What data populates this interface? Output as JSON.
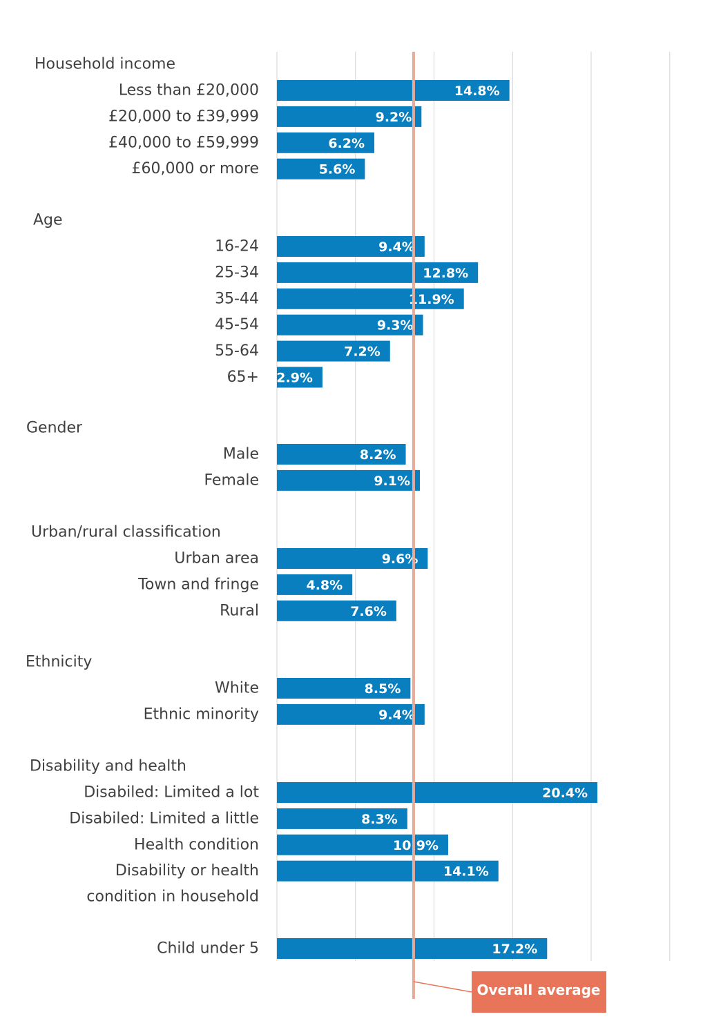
{
  "chart_data": {
    "type": "bar",
    "orientation": "horizontal",
    "xlim": [
      0,
      25
    ],
    "grid": true,
    "colors": {
      "bar": "#0a7fbf",
      "average_line": "#e8aa98",
      "average_box": "#e8755a"
    },
    "overall_average": {
      "label": "Overall average",
      "value": 8.7
    },
    "groups": [
      {
        "title": "Household income",
        "items": [
          {
            "label": [
              "Less than £20,000"
            ],
            "value": 14.8,
            "value_label": "14.8%"
          },
          {
            "label": [
              "£20,000 to £39,999"
            ],
            "value": 9.2,
            "value_label": "9.2%"
          },
          {
            "label": [
              "£40,000 to £59,999"
            ],
            "value": 6.2,
            "value_label": "6.2%"
          },
          {
            "label": [
              "£60,000 or more"
            ],
            "value": 5.6,
            "value_label": "5.6%"
          }
        ]
      },
      {
        "title": "Age",
        "items": [
          {
            "label": [
              "16-24"
            ],
            "value": 9.4,
            "value_label": "9.4%"
          },
          {
            "label": [
              "25-34"
            ],
            "value": 12.8,
            "value_label": "12.8%"
          },
          {
            "label": [
              "35-44"
            ],
            "value": 11.9,
            "value_label": "11.9%"
          },
          {
            "label": [
              "45-54"
            ],
            "value": 9.3,
            "value_label": "9.3%"
          },
          {
            "label": [
              "55-64"
            ],
            "value": 7.2,
            "value_label": "7.2%"
          },
          {
            "label": [
              "65+"
            ],
            "value": 2.9,
            "value_label": "2.9%"
          }
        ]
      },
      {
        "title": "Gender",
        "items": [
          {
            "label": [
              "Male"
            ],
            "value": 8.2,
            "value_label": "8.2%"
          },
          {
            "label": [
              "Female"
            ],
            "value": 9.1,
            "value_label": "9.1%"
          }
        ]
      },
      {
        "title": "Urban/rural classification",
        "items": [
          {
            "label": [
              "Urban area"
            ],
            "value": 9.6,
            "value_label": "9.6%"
          },
          {
            "label": [
              "Town and fringe"
            ],
            "value": 4.8,
            "value_label": "4.8%"
          },
          {
            "label": [
              "Rural"
            ],
            "value": 7.6,
            "value_label": "7.6%"
          }
        ]
      },
      {
        "title": "Ethnicity",
        "items": [
          {
            "label": [
              "White"
            ],
            "value": 8.5,
            "value_label": "8.5%"
          },
          {
            "label": [
              "Ethnic minority"
            ],
            "value": 9.4,
            "value_label": "9.4%"
          }
        ]
      },
      {
        "title": "Disability and health",
        "items": [
          {
            "label": [
              "Disabiled: Limited a lot"
            ],
            "value": 20.4,
            "value_label": "20.4%"
          },
          {
            "label": [
              "Disabiled: Limited a little"
            ],
            "value": 8.3,
            "value_label": "8.3%"
          },
          {
            "label": [
              "Health condition"
            ],
            "value": 10.9,
            "value_label": "10.9%"
          },
          {
            "label": [
              "Disability or health",
              "condition in household"
            ],
            "value": 14.1,
            "value_label": "14.1%"
          }
        ]
      },
      {
        "title": "",
        "items": [
          {
            "label": [
              "Child under 5"
            ],
            "value": 17.2,
            "value_label": "17.2%"
          }
        ]
      }
    ]
  }
}
